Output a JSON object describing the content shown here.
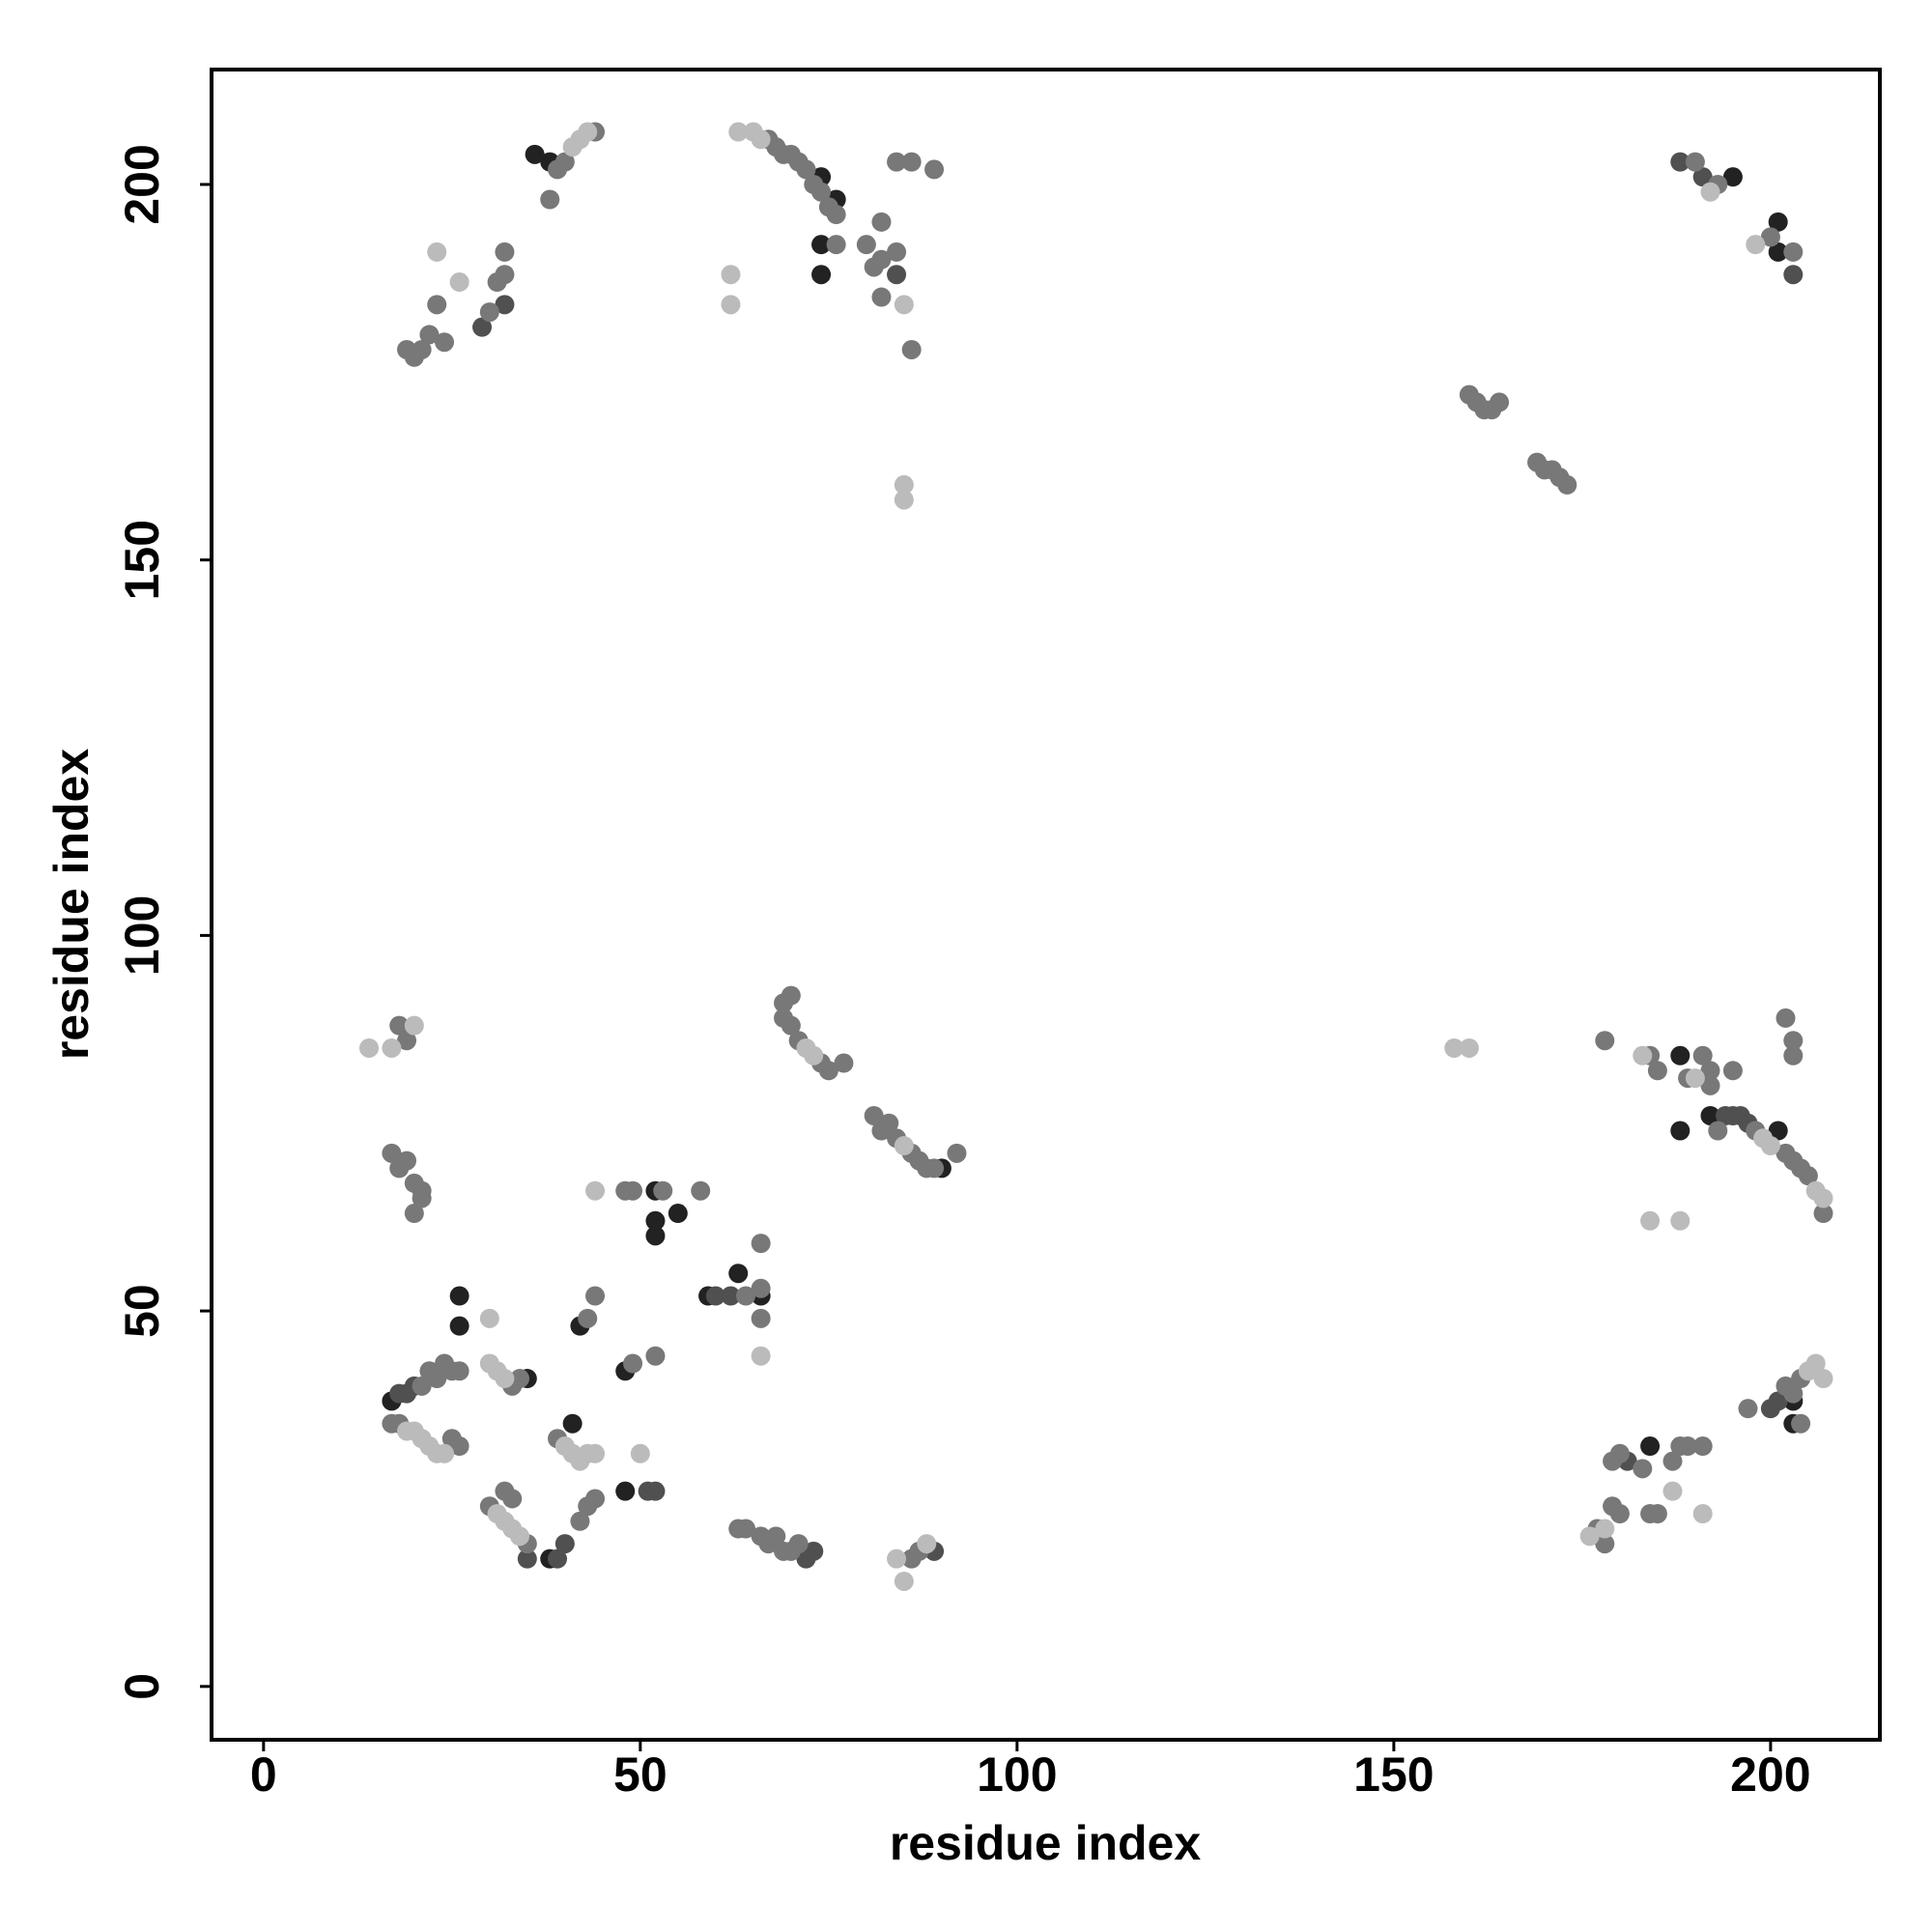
{
  "chart_data": {
    "type": "scatter",
    "x_label": "residue index",
    "y_label": "residue index",
    "xlim": [
      -6.9,
      214.5
    ],
    "ylim": [
      -7.1,
      215.3
    ],
    "xticks": [
      0,
      50,
      100,
      150,
      200
    ],
    "yticks": [
      0,
      50,
      100,
      150,
      200
    ],
    "series": [
      {
        "color": "#222222",
        "x": [
          74,
          76,
          74,
          74,
          195,
          201,
          201,
          188,
          201,
          90,
          52,
          52,
          52,
          55,
          63,
          66,
          59,
          48,
          42,
          41,
          38,
          48,
          188,
          192,
          203,
          203,
          36,
          38,
          17,
          26,
          26,
          35,
          184
        ],
        "values": [
          201,
          198,
          192,
          188,
          201,
          195,
          191,
          74,
          74,
          69,
          60,
          62,
          66,
          63,
          55,
          52,
          52,
          42,
          48,
          35,
          17,
          26,
          84,
          76,
          35,
          38,
          204,
          203,
          38,
          52,
          48,
          41,
          32
        ]
      },
      {
        "color": "#505050",
        "x": [
          32,
          29,
          84,
          39,
          40,
          18,
          19,
          20,
          194,
          195,
          196,
          197,
          51,
          52,
          60,
          62,
          35,
          188,
          191,
          203,
          181,
          200,
          201,
          89,
          73,
          72
        ],
        "values": [
          184,
          181,
          188,
          17,
          19,
          39,
          39,
          40,
          76,
          76,
          76,
          75,
          26,
          26,
          52,
          52,
          17,
          203,
          201,
          188,
          30,
          37,
          38,
          18,
          18,
          17
        ]
      },
      {
        "color": "#787878",
        "x": [
          19,
          20,
          21,
          22,
          23,
          24,
          30,
          31,
          32,
          32,
          39,
          40,
          44,
          38,
          67,
          68,
          69,
          70,
          71,
          72,
          73,
          74,
          75,
          76,
          76,
          80,
          81,
          82,
          82,
          84,
          86,
          84,
          86,
          89,
          82,
          190,
          193,
          200,
          203,
          160,
          161,
          162,
          163,
          164,
          169,
          170,
          171,
          172,
          173,
          18,
          19,
          17,
          18,
          19,
          20,
          21,
          20,
          21,
          69,
          70,
          69,
          70,
          71,
          74,
          75,
          77,
          81,
          82,
          83,
          84,
          86,
          87,
          88,
          89,
          92,
          178,
          184,
          185,
          189,
          191,
          192,
          192,
          195,
          193,
          198,
          202,
          203,
          204,
          205,
          207,
          202,
          203,
          203,
          21,
          22,
          23,
          24,
          25,
          26,
          17,
          18,
          25,
          26,
          33,
          34,
          30,
          35,
          32,
          33,
          42,
          43,
          44,
          39,
          43,
          44,
          48,
          49,
          49,
          52,
          53,
          58,
          64,
          66,
          66,
          66,
          63,
          64,
          66,
          67,
          68,
          69,
          70,
          71,
          86,
          87,
          177,
          178,
          179,
          180,
          179,
          180,
          183,
          184,
          185,
          187,
          188,
          189,
          191,
          197,
          202,
          203,
          204,
          204
        ],
        "values": [
          178,
          177,
          178,
          180,
          184,
          179,
          183,
          187,
          188,
          191,
          202,
          203,
          207,
          198,
          206,
          205,
          204,
          204,
          203,
          202,
          200,
          199,
          197,
          196,
          192,
          192,
          189,
          190,
          195,
          191,
          178,
          203,
          203,
          202,
          185,
          203,
          200,
          193,
          191,
          172,
          171,
          170,
          170,
          171,
          163,
          162,
          162,
          161,
          160,
          88,
          86,
          71,
          69,
          70,
          67,
          66,
          63,
          65,
          91,
          92,
          89,
          88,
          86,
          83,
          82,
          83,
          76,
          74,
          75,
          73,
          71,
          70,
          69,
          69,
          71,
          86,
          84,
          82,
          81,
          84,
          82,
          80,
          82,
          74,
          74,
          71,
          70,
          69,
          68,
          63,
          89,
          86,
          84,
          40,
          42,
          41,
          43,
          42,
          42,
          35,
          35,
          33,
          32,
          40,
          41,
          24,
          19,
          26,
          25,
          22,
          24,
          25,
          33,
          49,
          52,
          66,
          66,
          43,
          44,
          66,
          66,
          52,
          49,
          53,
          59,
          21,
          21,
          20,
          19,
          20,
          18,
          18,
          19,
          17,
          18,
          21,
          19,
          24,
          23,
          30,
          31,
          29,
          23,
          23,
          30,
          32,
          32,
          32,
          37,
          40,
          39,
          41,
          35
        ]
      },
      {
        "color": "#bbbbbb",
        "x": [
          23,
          26,
          62,
          62,
          85,
          85,
          14,
          17,
          20,
          158,
          160,
          184,
          188,
          66,
          44,
          50,
          30,
          85,
          84,
          88,
          187,
          191,
          192,
          198,
          19,
          20,
          21,
          22,
          23,
          24,
          31,
          32,
          33,
          34,
          30,
          31,
          32,
          40,
          41,
          42,
          43,
          44,
          42,
          43,
          41,
          63,
          65,
          66,
          199,
          200,
          206,
          207,
          205,
          206,
          207,
          178,
          176,
          72,
          85,
          85,
          73,
          183,
          190
        ],
        "values": [
          191,
          187,
          184,
          188,
          160,
          158,
          85,
          85,
          88,
          85,
          85,
          62,
          62,
          44,
          66,
          31,
          49,
          14,
          17,
          19,
          26,
          23,
          199,
          192,
          34,
          34,
          33,
          32,
          31,
          31,
          23,
          22,
          21,
          20,
          43,
          42,
          41,
          32,
          31,
          30,
          31,
          31,
          206,
          207,
          205,
          207,
          207,
          206,
          73,
          72,
          66,
          65,
          42,
          43,
          41,
          21,
          20,
          85,
          184,
          72,
          84,
          84,
          81
        ]
      }
    ]
  }
}
